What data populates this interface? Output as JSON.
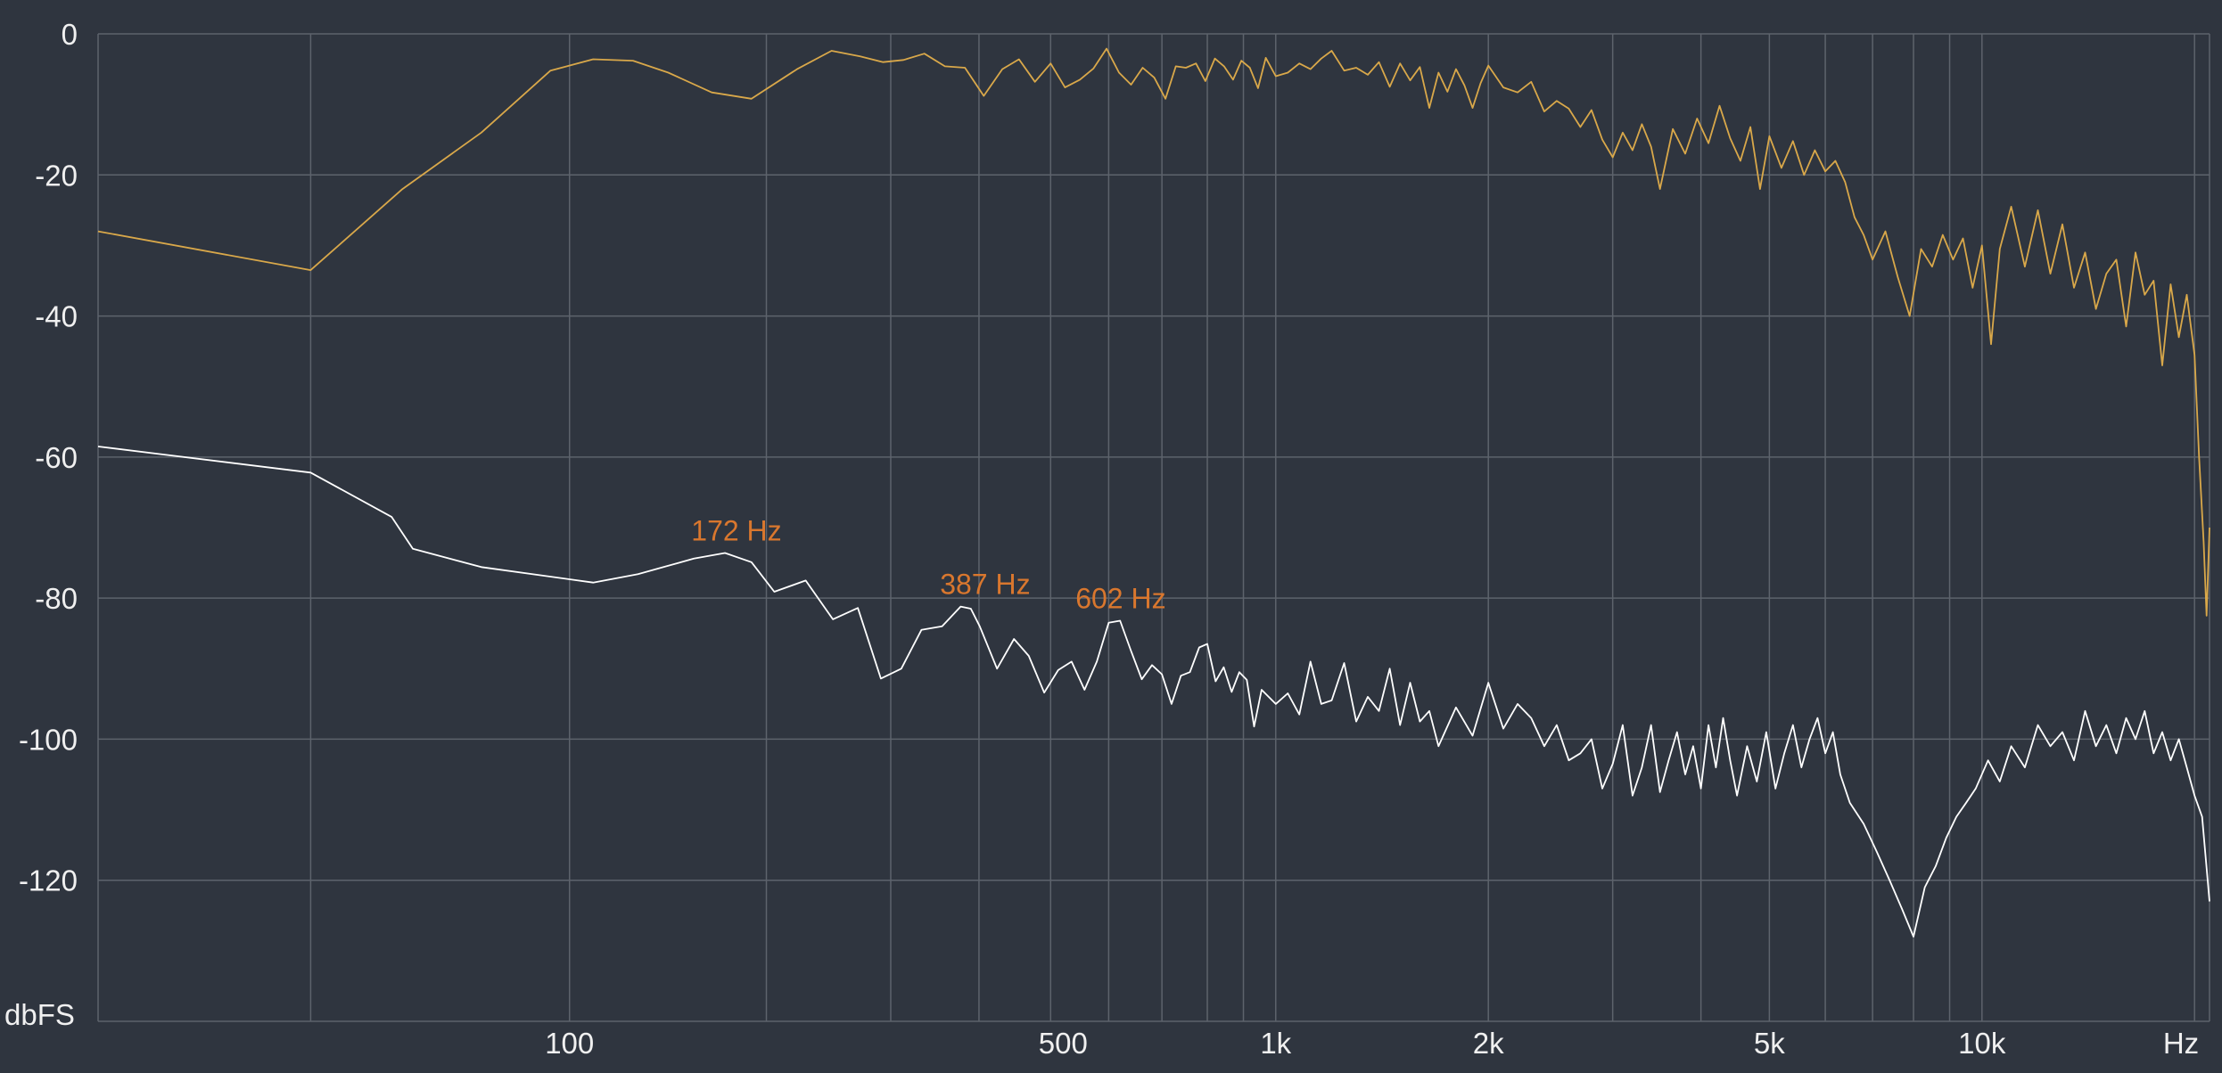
{
  "chart_data": {
    "type": "line",
    "title": "",
    "xlabel": "Hz",
    "ylabel": "dbFS",
    "x_scale": "log",
    "xlim": [
      21.5,
      21000
    ],
    "ylim": [
      -140,
      0
    ],
    "grid": true,
    "y_ticks": [
      {
        "value": 0,
        "label": "0"
      },
      {
        "value": -20,
        "label": "-20"
      },
      {
        "value": -40,
        "label": "-40"
      },
      {
        "value": -60,
        "label": "-60"
      },
      {
        "value": -80,
        "label": "-80"
      },
      {
        "value": -100,
        "label": "-100"
      },
      {
        "value": -120,
        "label": "-120"
      }
    ],
    "x_tick_labels": [
      {
        "value": 100,
        "label": "100"
      },
      {
        "value": 500,
        "label": "500"
      },
      {
        "value": 1000,
        "label": "1k"
      },
      {
        "value": 2000,
        "label": "2k"
      },
      {
        "value": 5000,
        "label": "5k"
      },
      {
        "value": 10000,
        "label": "10k"
      }
    ],
    "x_gridlines": [
      43,
      100,
      190,
      285,
      380,
      480,
      580,
      690,
      800,
      900,
      1000,
      2000,
      3000,
      4000,
      5000,
      6000,
      7000,
      8000,
      9000,
      10000,
      20000
    ],
    "series": [
      {
        "color": "#d9a84a",
        "points": [
          [
            21.5,
            -28
          ],
          [
            43,
            -33.5
          ],
          [
            58,
            -22
          ],
          [
            75,
            -14
          ],
          [
            94,
            -5.2
          ],
          [
            108,
            -3.6
          ],
          [
            123,
            -3.8
          ],
          [
            138,
            -5.5
          ],
          [
            159,
            -8.3
          ],
          [
            181,
            -9.2
          ],
          [
            210,
            -5
          ],
          [
            235,
            -2.4
          ],
          [
            258,
            -3.2
          ],
          [
            278,
            -4
          ],
          [
            297,
            -3.7
          ],
          [
            318,
            -2.8
          ],
          [
            340,
            -4.6
          ],
          [
            363,
            -4.8
          ],
          [
            386,
            -8.8
          ],
          [
            410,
            -5
          ],
          [
            433,
            -3.6
          ],
          [
            456,
            -6.8
          ],
          [
            480,
            -4.2
          ],
          [
            503,
            -7.6
          ],
          [
            528,
            -6.5
          ],
          [
            552,
            -4.9
          ],
          [
            576,
            -2.1
          ],
          [
            600,
            -5.5
          ],
          [
            624,
            -7.2
          ],
          [
            648,
            -4.8
          ],
          [
            673,
            -6.2
          ],
          [
            698,
            -9.2
          ],
          [
            722,
            -4.6
          ],
          [
            746,
            -4.8
          ],
          [
            771,
            -4.2
          ],
          [
            795,
            -6.7
          ],
          [
            820,
            -3.5
          ],
          [
            845,
            -4.6
          ],
          [
            870,
            -6.5
          ],
          [
            894,
            -3.8
          ],
          [
            919,
            -4.8
          ],
          [
            944,
            -7.7
          ],
          [
            968,
            -3.4
          ],
          [
            1000,
            -6
          ],
          [
            1040,
            -5.5
          ],
          [
            1080,
            -4.2
          ],
          [
            1120,
            -5
          ],
          [
            1160,
            -3.5
          ],
          [
            1200,
            -2.4
          ],
          [
            1250,
            -5.2
          ],
          [
            1300,
            -4.8
          ],
          [
            1350,
            -5.8
          ],
          [
            1400,
            -4
          ],
          [
            1450,
            -7.5
          ],
          [
            1500,
            -4.2
          ],
          [
            1550,
            -6.6
          ],
          [
            1600,
            -4.7
          ],
          [
            1650,
            -10.5
          ],
          [
            1700,
            -5.5
          ],
          [
            1750,
            -8.2
          ],
          [
            1800,
            -5
          ],
          [
            1850,
            -7.3
          ],
          [
            1900,
            -10.5
          ],
          [
            1950,
            -7
          ],
          [
            2000,
            -4.5
          ],
          [
            2100,
            -7.6
          ],
          [
            2200,
            -8.3
          ],
          [
            2300,
            -6.8
          ],
          [
            2400,
            -11
          ],
          [
            2500,
            -9.5
          ],
          [
            2600,
            -10.6
          ],
          [
            2700,
            -13.2
          ],
          [
            2800,
            -10.8
          ],
          [
            2900,
            -15
          ],
          [
            3000,
            -17.5
          ],
          [
            3100,
            -14
          ],
          [
            3200,
            -16.5
          ],
          [
            3300,
            -12.8
          ],
          [
            3400,
            -16
          ],
          [
            3500,
            -22
          ],
          [
            3650,
            -13.5
          ],
          [
            3800,
            -17
          ],
          [
            3950,
            -12
          ],
          [
            4100,
            -15.5
          ],
          [
            4250,
            -10.2
          ],
          [
            4400,
            -14.8
          ],
          [
            4550,
            -18
          ],
          [
            4700,
            -13.2
          ],
          [
            4850,
            -22
          ],
          [
            5000,
            -14.5
          ],
          [
            5200,
            -19
          ],
          [
            5400,
            -15.2
          ],
          [
            5600,
            -20
          ],
          [
            5800,
            -16.5
          ],
          [
            6000,
            -19.5
          ],
          [
            6200,
            -18
          ],
          [
            6400,
            -21
          ],
          [
            6600,
            -26
          ],
          [
            6800,
            -28.5
          ],
          [
            7000,
            -32
          ],
          [
            7300,
            -28
          ],
          [
            7600,
            -34.5
          ],
          [
            7900,
            -40
          ],
          [
            8200,
            -30.5
          ],
          [
            8500,
            -33
          ],
          [
            8800,
            -28.5
          ],
          [
            9100,
            -32
          ],
          [
            9400,
            -29
          ],
          [
            9700,
            -36
          ],
          [
            10000,
            -30
          ],
          [
            10300,
            -44
          ],
          [
            10600,
            -30.5
          ],
          [
            11000,
            -24.5
          ],
          [
            11500,
            -33
          ],
          [
            12000,
            -25
          ],
          [
            12500,
            -34
          ],
          [
            13000,
            -27
          ],
          [
            13500,
            -36
          ],
          [
            14000,
            -31
          ],
          [
            14500,
            -39
          ],
          [
            15000,
            -34
          ],
          [
            15500,
            -32
          ],
          [
            16000,
            -41.5
          ],
          [
            16500,
            -31
          ],
          [
            17000,
            -37
          ],
          [
            17500,
            -35
          ],
          [
            18000,
            -47
          ],
          [
            18500,
            -35.5
          ],
          [
            19000,
            -43
          ],
          [
            19500,
            -37
          ],
          [
            20000,
            -45.5
          ],
          [
            20300,
            -60
          ],
          [
            20600,
            -72
          ],
          [
            20800,
            -82.5
          ],
          [
            21000,
            -70
          ]
        ]
      },
      {
        "color": "#ffffff",
        "points": [
          [
            21.5,
            -58.5
          ],
          [
            43,
            -62.2
          ],
          [
            56,
            -68.5
          ],
          [
            60,
            -73
          ],
          [
            75,
            -75.6
          ],
          [
            108,
            -77.8
          ],
          [
            125,
            -76.6
          ],
          [
            150,
            -74.4
          ],
          [
            166,
            -73.6
          ],
          [
            181,
            -74.9
          ],
          [
            195,
            -79.1
          ],
          [
            216,
            -77.5
          ],
          [
            236,
            -83
          ],
          [
            256,
            -81.4
          ],
          [
            276,
            -91.4
          ],
          [
            295,
            -90
          ],
          [
            315,
            -84.5
          ],
          [
            337,
            -84
          ],
          [
            358,
            -81.2
          ],
          [
            370,
            -81.5
          ],
          [
            381,
            -84
          ],
          [
            403,
            -90
          ],
          [
            426,
            -85.8
          ],
          [
            447,
            -88.2
          ],
          [
            470,
            -93.4
          ],
          [
            492,
            -90.2
          ],
          [
            514,
            -89
          ],
          [
            536,
            -93
          ],
          [
            558,
            -89
          ],
          [
            580,
            -83.5
          ],
          [
            602,
            -83.2
          ],
          [
            624,
            -87.5
          ],
          [
            646,
            -91.5
          ],
          [
            668,
            -89.5
          ],
          [
            690,
            -90.8
          ],
          [
            712,
            -95
          ],
          [
            734,
            -91
          ],
          [
            756,
            -90.5
          ],
          [
            779,
            -87
          ],
          [
            800,
            -86.5
          ],
          [
            822,
            -91.8
          ],
          [
            844,
            -89.8
          ],
          [
            866,
            -93.3
          ],
          [
            888,
            -90.5
          ],
          [
            910,
            -91.6
          ],
          [
            932,
            -98.2
          ],
          [
            955,
            -93
          ],
          [
            1000,
            -95
          ],
          [
            1040,
            -93.5
          ],
          [
            1080,
            -96.5
          ],
          [
            1120,
            -89
          ],
          [
            1160,
            -95
          ],
          [
            1200,
            -94.5
          ],
          [
            1250,
            -89.2
          ],
          [
            1300,
            -97.5
          ],
          [
            1350,
            -94
          ],
          [
            1400,
            -96
          ],
          [
            1450,
            -90
          ],
          [
            1500,
            -98
          ],
          [
            1550,
            -92
          ],
          [
            1600,
            -97.5
          ],
          [
            1650,
            -96
          ],
          [
            1700,
            -101
          ],
          [
            1800,
            -95.5
          ],
          [
            1900,
            -99.5
          ],
          [
            2000,
            -92
          ],
          [
            2100,
            -98.5
          ],
          [
            2200,
            -95
          ],
          [
            2300,
            -97
          ],
          [
            2400,
            -101
          ],
          [
            2500,
            -98
          ],
          [
            2600,
            -103
          ],
          [
            2700,
            -102
          ],
          [
            2800,
            -100
          ],
          [
            2900,
            -107
          ],
          [
            3000,
            -103.5
          ],
          [
            3100,
            -98
          ],
          [
            3200,
            -108
          ],
          [
            3300,
            -104
          ],
          [
            3400,
            -98
          ],
          [
            3500,
            -107.5
          ],
          [
            3600,
            -103
          ],
          [
            3700,
            -99
          ],
          [
            3800,
            -105
          ],
          [
            3900,
            -101
          ],
          [
            4000,
            -107
          ],
          [
            4100,
            -98
          ],
          [
            4200,
            -104
          ],
          [
            4300,
            -97
          ],
          [
            4400,
            -103
          ],
          [
            4500,
            -108
          ],
          [
            4650,
            -101
          ],
          [
            4800,
            -106
          ],
          [
            4950,
            -99
          ],
          [
            5100,
            -107
          ],
          [
            5250,
            -102
          ],
          [
            5400,
            -98
          ],
          [
            5550,
            -104
          ],
          [
            5700,
            -100
          ],
          [
            5850,
            -97
          ],
          [
            6000,
            -102
          ],
          [
            6150,
            -99
          ],
          [
            6300,
            -105
          ],
          [
            6500,
            -109
          ],
          [
            6800,
            -112
          ],
          [
            7100,
            -116
          ],
          [
            7400,
            -120
          ],
          [
            7700,
            -124
          ],
          [
            8000,
            -128
          ],
          [
            8300,
            -121
          ],
          [
            8600,
            -118
          ],
          [
            8900,
            -114
          ],
          [
            9200,
            -111
          ],
          [
            9500,
            -109
          ],
          [
            9800,
            -107
          ],
          [
            10200,
            -103
          ],
          [
            10600,
            -106
          ],
          [
            11000,
            -101
          ],
          [
            11500,
            -104
          ],
          [
            12000,
            -98
          ],
          [
            12500,
            -101
          ],
          [
            13000,
            -99
          ],
          [
            13500,
            -103
          ],
          [
            14000,
            -96
          ],
          [
            14500,
            -101
          ],
          [
            15000,
            -98
          ],
          [
            15500,
            -102
          ],
          [
            16000,
            -97
          ],
          [
            16500,
            -100
          ],
          [
            17000,
            -96
          ],
          [
            17500,
            -102
          ],
          [
            18000,
            -99
          ],
          [
            18500,
            -103
          ],
          [
            19000,
            -100
          ],
          [
            19500,
            -104
          ],
          [
            20000,
            -108
          ],
          [
            20500,
            -111
          ],
          [
            21000,
            -123
          ]
        ]
      }
    ],
    "peaks": [
      {
        "freq": 172,
        "db": -73.6,
        "label": "172 Hz"
      },
      {
        "freq": 387,
        "db": -81.2,
        "label": "387 Hz"
      },
      {
        "freq": 602,
        "db": -83.2,
        "label": "602 Hz"
      }
    ]
  }
}
